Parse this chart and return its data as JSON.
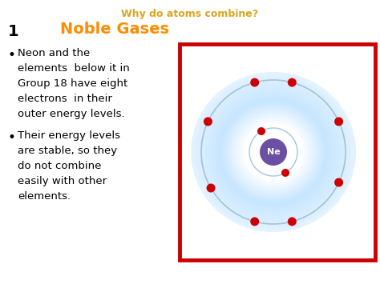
{
  "title": "Why do atoms combine?",
  "title_color": "#DAA520",
  "slide_number": "1",
  "heading": "Noble Gases",
  "heading_color": "#FF8C00",
  "bullet1_lines": [
    "Neon and the",
    "elements  below it in",
    "Group 18 have eight",
    "electrons  in their",
    "outer energy levels."
  ],
  "bullet2_lines": [
    "Their energy levels",
    "are stable, so they",
    "do not combine",
    "easily with other",
    "elements."
  ],
  "background_color": "#FFFFFF",
  "text_color": "#000000",
  "nucleus_color": "#6A4FA3",
  "nucleus_label": "Ne",
  "nucleus_label_color": "#FFFFFF",
  "electron_color": "#CC0000",
  "box_border_color": "#CC0000",
  "outer_orbit_angles": [
    330,
    30,
    75,
    120,
    150,
    210,
    255,
    300
  ],
  "inner_orbit_angles": [
    60,
    240
  ]
}
